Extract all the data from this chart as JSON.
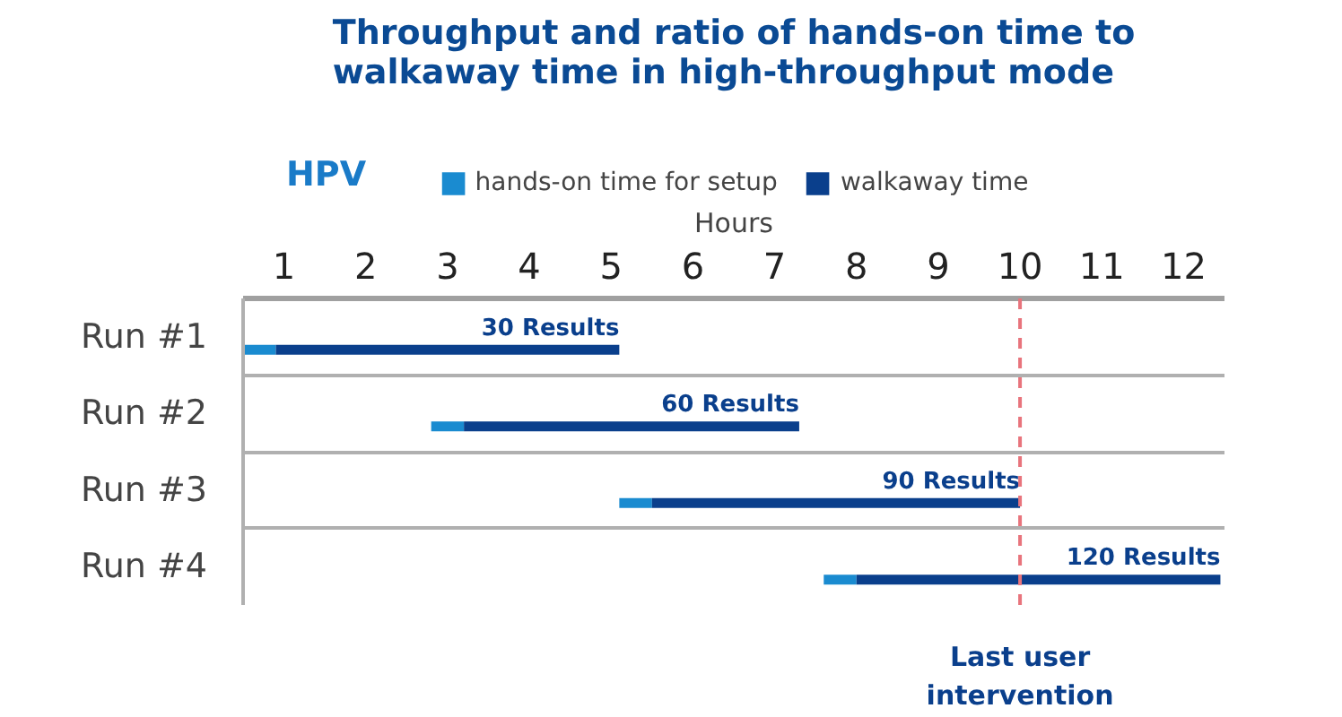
{
  "chart_data": {
    "type": "bar",
    "orientation": "horizontal",
    "title": "Throughput and ratio of hands-on time to\nwalkaway time in high-throughput mode",
    "xlabel": "Hours",
    "ylabel": "HPV",
    "categories": [
      "Run #1",
      "Run #2",
      "Run #3",
      "Run #4"
    ],
    "series": [
      {
        "name": "hands-on time for setup",
        "color": "#1a8bd0",
        "base": [
          0.5,
          2.8,
          5.1,
          7.6
        ],
        "values": [
          0.4,
          0.4,
          0.4,
          0.4
        ]
      },
      {
        "name": "walkaway time",
        "color": "#0a3f8c",
        "base": [
          0.9,
          3.2,
          5.5,
          8.0
        ],
        "values": [
          4.2,
          4.1,
          4.5,
          4.45
        ]
      }
    ],
    "xlim": [
      0.5,
      12.5
    ],
    "xticks": [
      1,
      2,
      3,
      4,
      5,
      6,
      7,
      8,
      9,
      10,
      11,
      12
    ],
    "annotations": [
      "30 Results",
      "60 Results",
      "90 Results",
      "120 Results"
    ],
    "ref_lines": [
      {
        "axis": "x",
        "value": 10,
        "label": "Last user intervention",
        "color": "#e8747c",
        "line_style": "dashed"
      }
    ],
    "grid": "y",
    "legend": "top"
  }
}
